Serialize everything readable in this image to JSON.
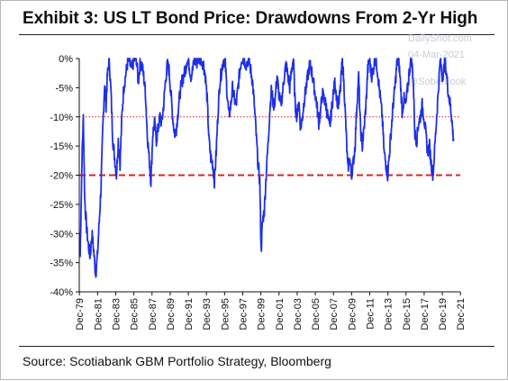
{
  "title": "Exhibit 3: US LT Bond Price: Drawdowns From 2-Yr High",
  "source": "Source: Scotiabank GBM Portfolio Strategy, Bloomberg",
  "watermark": {
    "site": "DailyShot.com",
    "date": "04-Mar-2021",
    "handle": "@SoberLook"
  },
  "colors": {
    "series": "#1f2fe6",
    "ref": "#e0201e",
    "axis": "#111111"
  },
  "chart_data": {
    "type": "line",
    "title": "Exhibit 3: US LT Bond Price: Drawdowns From 2-Yr High",
    "xlabel": "",
    "ylabel": "",
    "x_range": [
      1979.9,
      2021.9
    ],
    "ylim": [
      -40,
      0
    ],
    "y_ticks": [
      0,
      -5,
      -10,
      -15,
      -20,
      -25,
      -30,
      -35,
      -40
    ],
    "y_tick_labels": [
      "0%",
      "-5%",
      "-10%",
      "-15%",
      "-20%",
      "-25%",
      "-30%",
      "-35%",
      "-40%"
    ],
    "x_tick_labels": [
      "Dec-79",
      "Dec-81",
      "Dec-83",
      "Dec-85",
      "Dec-87",
      "Dec-89",
      "Dec-91",
      "Dec-93",
      "Dec-95",
      "Dec-97",
      "Dec-99",
      "Dec-01",
      "Dec-03",
      "Dec-05",
      "Dec-07",
      "Dec-09",
      "Dec-11",
      "Dec-13",
      "Dec-15",
      "Dec-17",
      "Dec-19",
      "Dec-21"
    ],
    "x_tick_values": [
      1979.92,
      1981.92,
      1983.92,
      1985.92,
      1987.92,
      1989.92,
      1991.92,
      1993.92,
      1995.92,
      1997.92,
      1999.92,
      2001.92,
      2003.92,
      2005.92,
      2007.92,
      2009.92,
      2011.92,
      2013.92,
      2015.92,
      2017.92,
      2019.92,
      2021.92
    ],
    "reference_lines": [
      {
        "y": -10,
        "style": "dotted"
      },
      {
        "y": -20,
        "style": "dashed"
      }
    ],
    "grid": false,
    "legend": "none",
    "series": [
      {
        "points": [
          [
            1980.0,
            -34
          ],
          [
            1980.2,
            -17
          ],
          [
            1980.35,
            -10
          ],
          [
            1980.5,
            -24
          ],
          [
            1980.7,
            -29
          ],
          [
            1980.9,
            -32
          ],
          [
            1981.1,
            -34
          ],
          [
            1981.3,
            -30
          ],
          [
            1981.5,
            -33
          ],
          [
            1981.7,
            -37
          ],
          [
            1981.9,
            -34
          ],
          [
            1982.1,
            -28
          ],
          [
            1982.3,
            -22
          ],
          [
            1982.5,
            -12
          ],
          [
            1982.7,
            -4
          ],
          [
            1982.85,
            -8
          ],
          [
            1983.0,
            -3
          ],
          [
            1983.2,
            0
          ],
          [
            1983.4,
            -6
          ],
          [
            1983.6,
            -14
          ],
          [
            1983.8,
            -17
          ],
          [
            1984.0,
            -20
          ],
          [
            1984.2,
            -14
          ],
          [
            1984.4,
            -18
          ],
          [
            1984.6,
            -10
          ],
          [
            1984.8,
            -5
          ],
          [
            1985.0,
            -3
          ],
          [
            1985.2,
            -1
          ],
          [
            1985.4,
            0
          ],
          [
            1985.6,
            -2
          ],
          [
            1985.8,
            -1
          ],
          [
            1986.0,
            0
          ],
          [
            1986.2,
            0
          ],
          [
            1986.4,
            -4
          ],
          [
            1986.6,
            -1
          ],
          [
            1986.8,
            -1
          ],
          [
            1987.0,
            -3
          ],
          [
            1987.2,
            -6
          ],
          [
            1987.4,
            -13
          ],
          [
            1987.6,
            -17
          ],
          [
            1987.8,
            -21
          ],
          [
            1988.0,
            -13
          ],
          [
            1988.2,
            -11
          ],
          [
            1988.4,
            -14
          ],
          [
            1988.6,
            -12
          ],
          [
            1988.8,
            -10
          ],
          [
            1989.0,
            -11
          ],
          [
            1989.2,
            -8
          ],
          [
            1989.4,
            -4
          ],
          [
            1989.6,
            -1
          ],
          [
            1989.8,
            -2
          ],
          [
            1990.0,
            -6
          ],
          [
            1990.2,
            -10
          ],
          [
            1990.4,
            -13
          ],
          [
            1990.6,
            -12
          ],
          [
            1990.8,
            -9
          ],
          [
            1991.0,
            -6
          ],
          [
            1991.2,
            -4
          ],
          [
            1991.4,
            -3
          ],
          [
            1991.6,
            -2
          ],
          [
            1991.8,
            0
          ],
          [
            1992.0,
            -1
          ],
          [
            1992.2,
            -3
          ],
          [
            1992.4,
            -2
          ],
          [
            1992.6,
            0
          ],
          [
            1992.8,
            -1
          ],
          [
            1993.0,
            0
          ],
          [
            1993.3,
            0
          ],
          [
            1993.6,
            -1
          ],
          [
            1993.8,
            -3
          ],
          [
            1994.0,
            -7
          ],
          [
            1994.2,
            -14
          ],
          [
            1994.4,
            -17
          ],
          [
            1994.6,
            -18
          ],
          [
            1994.8,
            -21
          ],
          [
            1995.0,
            -16
          ],
          [
            1995.2,
            -9
          ],
          [
            1995.4,
            -4
          ],
          [
            1995.6,
            -2
          ],
          [
            1995.8,
            0
          ],
          [
            1996.0,
            -1
          ],
          [
            1996.2,
            -6
          ],
          [
            1996.4,
            -10
          ],
          [
            1996.6,
            -8
          ],
          [
            1996.8,
            -5
          ],
          [
            1997.0,
            -7
          ],
          [
            1997.2,
            -8
          ],
          [
            1997.4,
            -5
          ],
          [
            1997.6,
            -2
          ],
          [
            1997.8,
            0
          ],
          [
            1998.0,
            0
          ],
          [
            1998.3,
            -1
          ],
          [
            1998.6,
            0
          ],
          [
            1998.8,
            -2
          ],
          [
            1999.0,
            -4
          ],
          [
            1999.2,
            -8
          ],
          [
            1999.4,
            -13
          ],
          [
            1999.6,
            -18
          ],
          [
            1999.8,
            -21
          ],
          [
            1999.95,
            -33
          ],
          [
            2000.1,
            -28
          ],
          [
            2000.3,
            -26
          ],
          [
            2000.5,
            -20
          ],
          [
            2000.7,
            -15
          ],
          [
            2000.9,
            -9
          ],
          [
            2001.1,
            -5
          ],
          [
            2001.3,
            -8
          ],
          [
            2001.5,
            -7
          ],
          [
            2001.7,
            -3
          ],
          [
            2001.9,
            -6
          ],
          [
            2002.1,
            -8
          ],
          [
            2002.3,
            -6
          ],
          [
            2002.5,
            -3
          ],
          [
            2002.7,
            -1
          ],
          [
            2002.9,
            -3
          ],
          [
            2003.1,
            -5
          ],
          [
            2003.3,
            -2
          ],
          [
            2003.5,
            0
          ],
          [
            2003.7,
            -8
          ],
          [
            2003.9,
            -10
          ],
          [
            2004.1,
            -7
          ],
          [
            2004.3,
            -12
          ],
          [
            2004.5,
            -10
          ],
          [
            2004.7,
            -7
          ],
          [
            2004.9,
            -5
          ],
          [
            2005.1,
            -3
          ],
          [
            2005.3,
            -1
          ],
          [
            2005.5,
            -2
          ],
          [
            2005.7,
            -4
          ],
          [
            2005.9,
            -6
          ],
          [
            2006.1,
            -8
          ],
          [
            2006.3,
            -11
          ],
          [
            2006.5,
            -9
          ],
          [
            2006.7,
            -6
          ],
          [
            2006.9,
            -7
          ],
          [
            2007.1,
            -8
          ],
          [
            2007.3,
            -10
          ],
          [
            2007.5,
            -12
          ],
          [
            2007.7,
            -9
          ],
          [
            2007.9,
            -6
          ],
          [
            2008.1,
            -4
          ],
          [
            2008.3,
            -7
          ],
          [
            2008.5,
            -8
          ],
          [
            2008.7,
            -5
          ],
          [
            2008.9,
            0
          ],
          [
            2009.1,
            -5
          ],
          [
            2009.3,
            -12
          ],
          [
            2009.5,
            -19
          ],
          [
            2009.7,
            -17
          ],
          [
            2009.9,
            -20
          ],
          [
            2010.1,
            -18
          ],
          [
            2010.3,
            -15
          ],
          [
            2010.5,
            -8
          ],
          [
            2010.7,
            -3
          ],
          [
            2010.9,
            -12
          ],
          [
            2011.1,
            -15
          ],
          [
            2011.3,
            -12
          ],
          [
            2011.5,
            -8
          ],
          [
            2011.7,
            -2
          ],
          [
            2011.9,
            0
          ],
          [
            2012.1,
            -3
          ],
          [
            2012.3,
            -2
          ],
          [
            2012.5,
            0
          ],
          [
            2012.7,
            -1
          ],
          [
            2012.9,
            -4
          ],
          [
            2013.1,
            -7
          ],
          [
            2013.3,
            -10
          ],
          [
            2013.5,
            -16
          ],
          [
            2013.7,
            -18
          ],
          [
            2013.9,
            -20
          ],
          [
            2014.1,
            -16
          ],
          [
            2014.3,
            -12
          ],
          [
            2014.5,
            -8
          ],
          [
            2014.7,
            -5
          ],
          [
            2014.9,
            -1
          ],
          [
            2015.1,
            0
          ],
          [
            2015.3,
            -4
          ],
          [
            2015.5,
            -9
          ],
          [
            2015.7,
            -7
          ],
          [
            2015.9,
            -8
          ],
          [
            2016.1,
            -5
          ],
          [
            2016.3,
            -2
          ],
          [
            2016.5,
            0
          ],
          [
            2016.7,
            -3
          ],
          [
            2016.9,
            -13
          ],
          [
            2017.1,
            -14
          ],
          [
            2017.3,
            -11
          ],
          [
            2017.5,
            -10
          ],
          [
            2017.7,
            -8
          ],
          [
            2017.9,
            -10
          ],
          [
            2018.1,
            -13
          ],
          [
            2018.3,
            -16
          ],
          [
            2018.5,
            -15
          ],
          [
            2018.7,
            -18
          ],
          [
            2018.9,
            -20
          ],
          [
            2019.1,
            -15
          ],
          [
            2019.3,
            -10
          ],
          [
            2019.5,
            -5
          ],
          [
            2019.7,
            0
          ],
          [
            2019.9,
            -3
          ],
          [
            2020.1,
            -2
          ],
          [
            2020.2,
            0
          ],
          [
            2020.4,
            -3
          ],
          [
            2020.6,
            -6
          ],
          [
            2020.8,
            -8
          ],
          [
            2020.95,
            -10
          ],
          [
            2021.1,
            -13
          ],
          [
            2021.17,
            -14
          ]
        ]
      }
    ]
  }
}
